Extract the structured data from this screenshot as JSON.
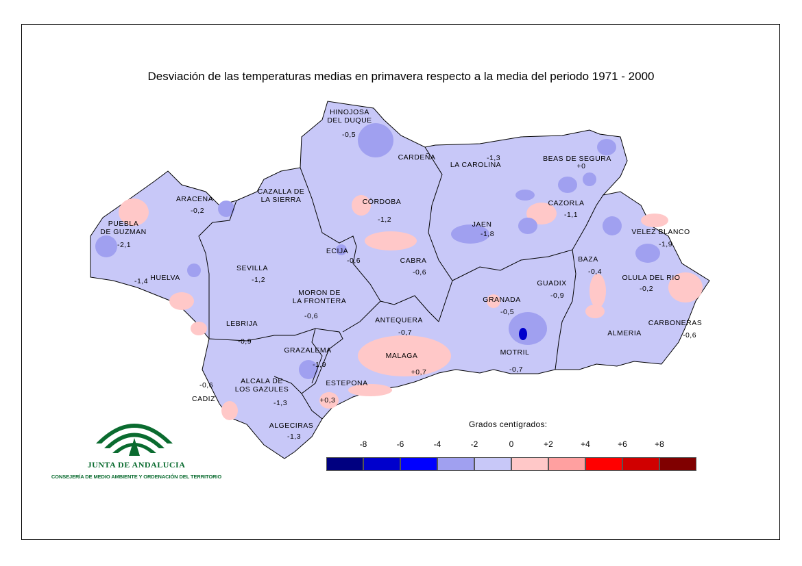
{
  "title": "Desviación de las temperaturas medias en primavera respecto a la media del periodo 1971 - 2000",
  "legend": {
    "title": "Grados centígrados:",
    "ticks": [
      "-8",
      "-6",
      "-4",
      "-2",
      "0",
      "+2",
      "+4",
      "+6",
      "+8"
    ],
    "tick_values": [
      -8,
      -6,
      -4,
      -2,
      0,
      2,
      4,
      6,
      8
    ],
    "colors": [
      "#000080",
      "#0000cc",
      "#0000ff",
      "#a0a0f0",
      "#c8c8f8",
      "#ffc8c8",
      "#ffa0a0",
      "#ff0000",
      "#d00000",
      "#800000"
    ]
  },
  "map": {
    "base_color": "#c8c8f8",
    "stations": [
      {
        "name": "HINOJOSA\nDEL DUQUE",
        "value": "-0,5"
      },
      {
        "name": "CARDEÑA",
        "value": ""
      },
      {
        "name": "LA CAROLINA",
        "value": "-1,3"
      },
      {
        "name": "BEAS DE SEGURA",
        "value": "+0"
      },
      {
        "name": "ARACENA",
        "value": "-0,2"
      },
      {
        "name": "CAZALLA DE\nLA SIERRA",
        "value": ""
      },
      {
        "name": "CÓRDOBA",
        "value": "-1,2"
      },
      {
        "name": "CAZORLA",
        "value": "-1,1"
      },
      {
        "name": "PUEBLA\nDE GUZMAN",
        "value": "-2,1"
      },
      {
        "name": "JAEN",
        "value": "-1,8"
      },
      {
        "name": "VELEZ BLANCO",
        "value": "-1,9"
      },
      {
        "name": "ECIJA",
        "value": "-0,6"
      },
      {
        "name": "CABRA",
        "value": "-0,6"
      },
      {
        "name": "BAZA",
        "value": "-0,4"
      },
      {
        "name": "SEVILLA",
        "value": "-1,2"
      },
      {
        "name": "HUELVA",
        "value": "-1,4"
      },
      {
        "name": "OLULA DEL RIO",
        "value": "-0,2"
      },
      {
        "name": "GUADIX",
        "value": "-0,9"
      },
      {
        "name": "MORON DE\nLA FRONTERA",
        "value": "-0,6"
      },
      {
        "name": "GRANADA",
        "value": "-0,5"
      },
      {
        "name": "LEBRIJA",
        "value": "-0,9"
      },
      {
        "name": "ANTEQUERA",
        "value": "-0,7"
      },
      {
        "name": "CARBONERAS",
        "value": "-0,6"
      },
      {
        "name": "ALMERIA",
        "value": ""
      },
      {
        "name": "GRAZALEMA",
        "value": "-1,9"
      },
      {
        "name": "MALAGA",
        "value": "+0,7"
      },
      {
        "name": "MOTRIL",
        "value": "-0,7"
      },
      {
        "name": "ALCALA DE\nLOS GAZULES",
        "value": "-1,3"
      },
      {
        "name": "ESTEPONA",
        "value": "+0,3"
      },
      {
        "name": "CADIZ",
        "value": "-0,6"
      },
      {
        "name": "ALGECIRAS",
        "value": "-1,3"
      }
    ]
  },
  "logo": {
    "name": "JUNTA DE ANDALUCIA",
    "subtitle": "CONSEJERÍA DE MEDIO AMBIENTE Y ORDENACIÓN DEL TERRITORIO",
    "color": "#0a6b2f"
  }
}
